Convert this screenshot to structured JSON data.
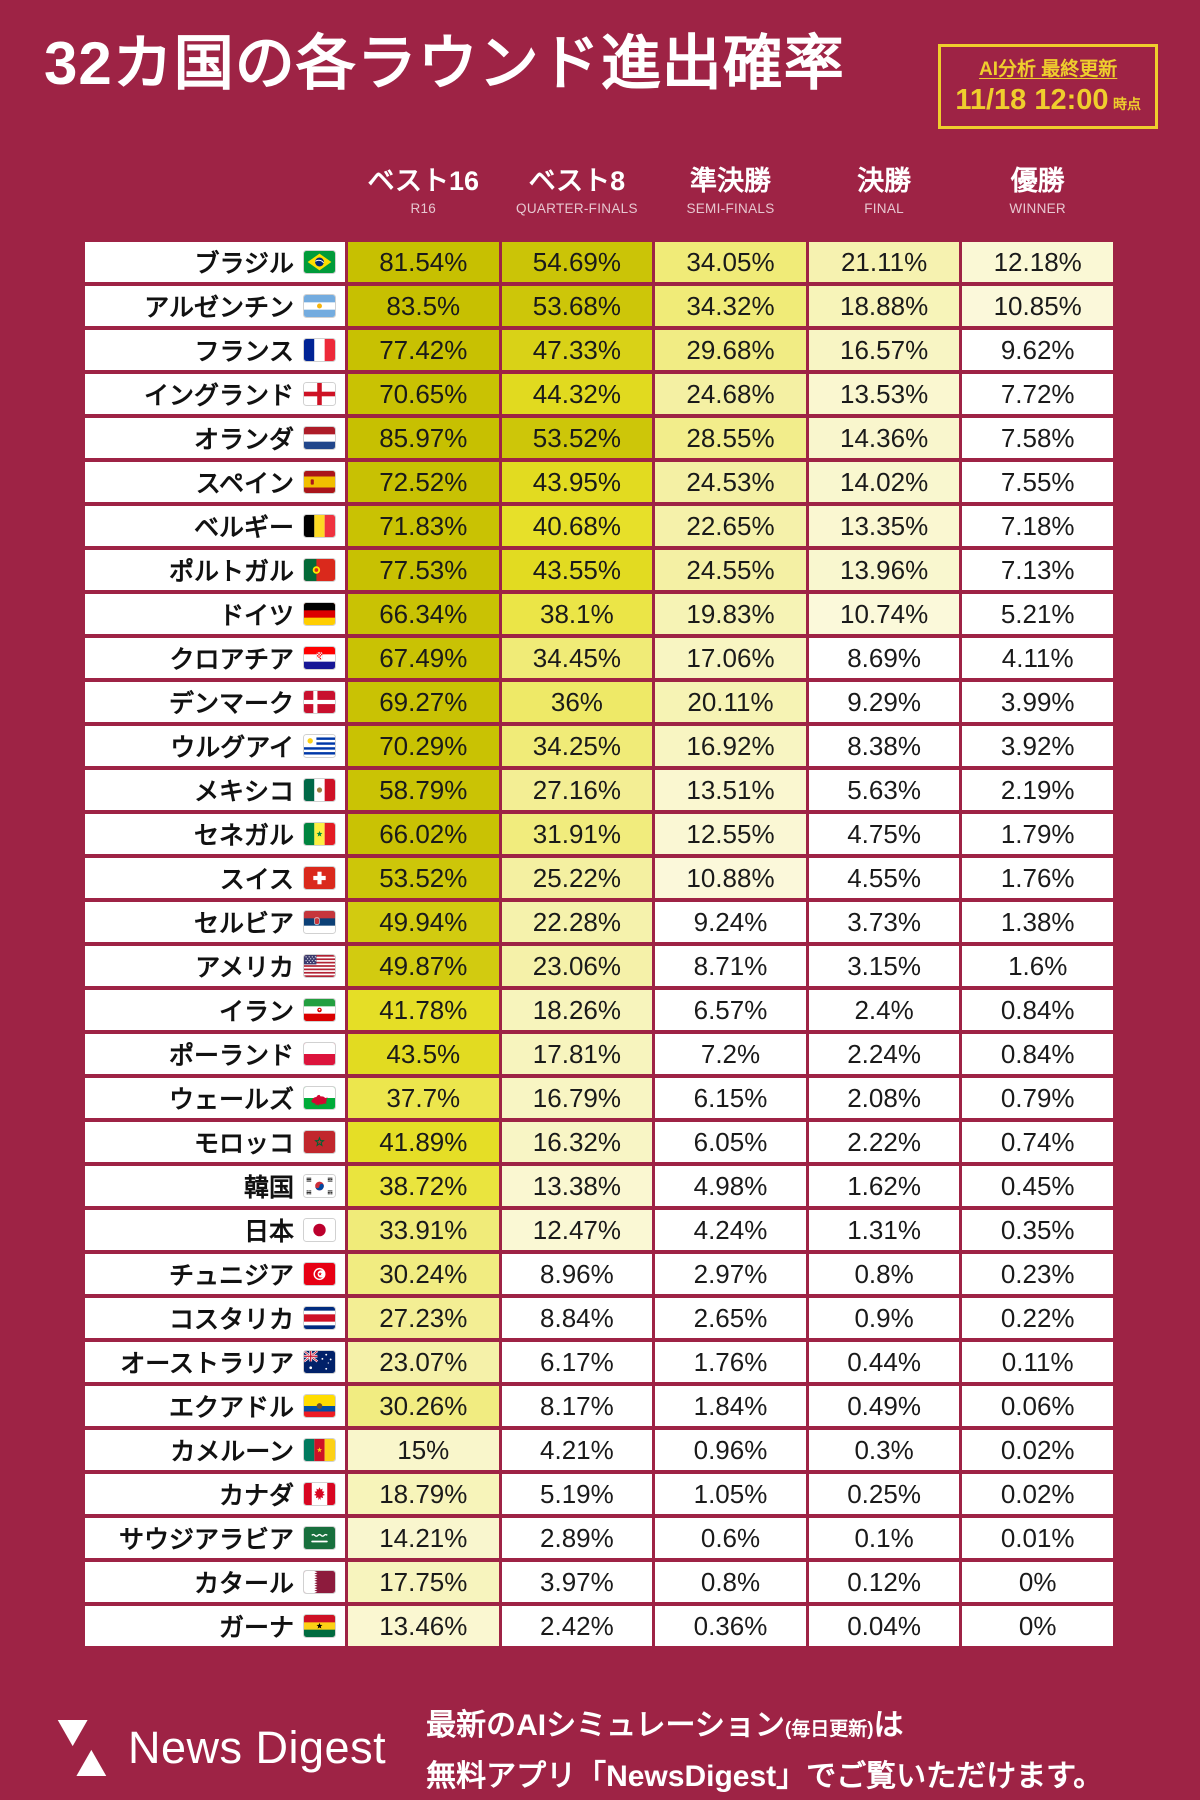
{
  "page": {
    "background_color": "#9E2345",
    "accent_yellow": "#EFCE2D",
    "heat_low_color": "#FFFFFF",
    "heat_high_color": "#C6BF00"
  },
  "header": {
    "title": "32カ国の各ラウンド進出確率",
    "badge": {
      "top": "AI分析 最終更新",
      "datetime": "11/18 12:00",
      "suffix": "時点"
    }
  },
  "chart_data": {
    "type": "table",
    "title": "32カ国の各ラウンド進出確率",
    "updated": "11/18 12:00",
    "unit": "%",
    "columns": [
      {
        "jp": "ベスト16",
        "en": "R16"
      },
      {
        "jp": "ベスト8",
        "en": "QUARTER-FINALS"
      },
      {
        "jp": "準決勝",
        "en": "SEMI-FINALS"
      },
      {
        "jp": "決勝",
        "en": "FINAL"
      },
      {
        "jp": "優勝",
        "en": "WINNER"
      }
    ],
    "rows": [
      {
        "country": "ブラジル",
        "flag": "br",
        "values": [
          81.54,
          54.69,
          34.05,
          21.11,
          12.18
        ]
      },
      {
        "country": "アルゼンチン",
        "flag": "ar",
        "values": [
          83.5,
          53.68,
          34.32,
          18.88,
          10.85
        ]
      },
      {
        "country": "フランス",
        "flag": "fr",
        "values": [
          77.42,
          47.33,
          29.68,
          16.57,
          9.62
        ]
      },
      {
        "country": "イングランド",
        "flag": "eng",
        "values": [
          70.65,
          44.32,
          24.68,
          13.53,
          7.72
        ]
      },
      {
        "country": "オランダ",
        "flag": "nl",
        "values": [
          85.97,
          53.52,
          28.55,
          14.36,
          7.58
        ]
      },
      {
        "country": "スペイン",
        "flag": "es",
        "values": [
          72.52,
          43.95,
          24.53,
          14.02,
          7.55
        ]
      },
      {
        "country": "ベルギー",
        "flag": "be",
        "values": [
          71.83,
          40.68,
          22.65,
          13.35,
          7.18
        ]
      },
      {
        "country": "ポルトガル",
        "flag": "pt",
        "values": [
          77.53,
          43.55,
          24.55,
          13.96,
          7.13
        ]
      },
      {
        "country": "ドイツ",
        "flag": "de",
        "values": [
          66.34,
          38.1,
          19.83,
          10.74,
          5.21
        ]
      },
      {
        "country": "クロアチア",
        "flag": "hr",
        "values": [
          67.49,
          34.45,
          17.06,
          8.69,
          4.11
        ]
      },
      {
        "country": "デンマーク",
        "flag": "dk",
        "values": [
          69.27,
          36,
          20.11,
          9.29,
          3.99
        ]
      },
      {
        "country": "ウルグアイ",
        "flag": "uy",
        "values": [
          70.29,
          34.25,
          16.92,
          8.38,
          3.92
        ]
      },
      {
        "country": "メキシコ",
        "flag": "mx",
        "values": [
          58.79,
          27.16,
          13.51,
          5.63,
          2.19
        ]
      },
      {
        "country": "セネガル",
        "flag": "sn",
        "values": [
          66.02,
          31.91,
          12.55,
          4.75,
          1.79
        ]
      },
      {
        "country": "スイス",
        "flag": "ch",
        "values": [
          53.52,
          25.22,
          10.88,
          4.55,
          1.76
        ]
      },
      {
        "country": "セルビア",
        "flag": "rs",
        "values": [
          49.94,
          22.28,
          9.24,
          3.73,
          1.38
        ]
      },
      {
        "country": "アメリカ",
        "flag": "us",
        "values": [
          49.87,
          23.06,
          8.71,
          3.15,
          1.6
        ]
      },
      {
        "country": "イラン",
        "flag": "ir",
        "values": [
          41.78,
          18.26,
          6.57,
          2.4,
          0.84
        ]
      },
      {
        "country": "ポーランド",
        "flag": "pl",
        "values": [
          43.5,
          17.81,
          7.2,
          2.24,
          0.84
        ]
      },
      {
        "country": "ウェールズ",
        "flag": "wls",
        "values": [
          37.7,
          16.79,
          6.15,
          2.08,
          0.79
        ]
      },
      {
        "country": "モロッコ",
        "flag": "ma",
        "values": [
          41.89,
          16.32,
          6.05,
          2.22,
          0.74
        ]
      },
      {
        "country": "韓国",
        "flag": "kr",
        "values": [
          38.72,
          13.38,
          4.98,
          1.62,
          0.45
        ]
      },
      {
        "country": "日本",
        "flag": "jp",
        "values": [
          33.91,
          12.47,
          4.24,
          1.31,
          0.35
        ]
      },
      {
        "country": "チュニジア",
        "flag": "tn",
        "values": [
          30.24,
          8.96,
          2.97,
          0.8,
          0.23
        ]
      },
      {
        "country": "コスタリカ",
        "flag": "cr",
        "values": [
          27.23,
          8.84,
          2.65,
          0.9,
          0.22
        ]
      },
      {
        "country": "オーストラリア",
        "flag": "au",
        "values": [
          23.07,
          6.17,
          1.76,
          0.44,
          0.11
        ]
      },
      {
        "country": "エクアドル",
        "flag": "ec",
        "values": [
          30.26,
          8.17,
          1.84,
          0.49,
          0.06
        ]
      },
      {
        "country": "カメルーン",
        "flag": "cm",
        "values": [
          15,
          4.21,
          0.96,
          0.3,
          0.02
        ]
      },
      {
        "country": "カナダ",
        "flag": "ca",
        "values": [
          18.79,
          5.19,
          1.05,
          0.25,
          0.02
        ]
      },
      {
        "country": "サウジアラビア",
        "flag": "sa",
        "values": [
          14.21,
          2.89,
          0.6,
          0.1,
          0.01
        ]
      },
      {
        "country": "カタール",
        "flag": "qa",
        "values": [
          17.75,
          3.97,
          0.8,
          0.12,
          0
        ]
      },
      {
        "country": "ガーナ",
        "flag": "gh",
        "values": [
          13.46,
          2.42,
          0.36,
          0.04,
          0
        ]
      }
    ]
  },
  "footer": {
    "logo_text": "News Digest",
    "line1_main": "最新のAIシミュレーション",
    "line1_small": "(毎日更新)",
    "line1_tail": "は",
    "line2": "無料アプリ「NewsDigest」でご覧いただけます。"
  }
}
